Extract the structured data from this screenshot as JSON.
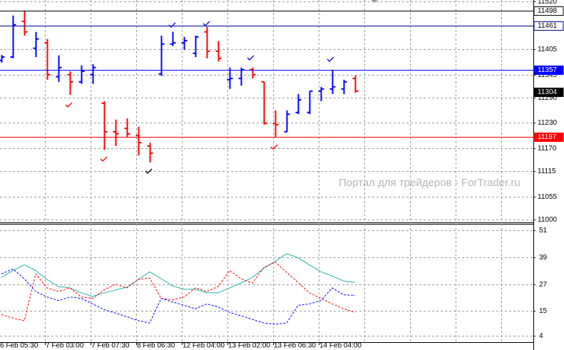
{
  "chart_data": [
    {
      "type": "ohlc",
      "watermark": "Портал для трейдеров - ForTrader.ru",
      "up_color": "#0000ff",
      "down_color": "#ff0000",
      "ylim": [
        10993,
        11523
      ],
      "yticks": [
        11520,
        11405,
        11345,
        11290,
        11230,
        11170,
        11115,
        11055,
        11000
      ],
      "grid": true,
      "levels": [
        {
          "value": 11498,
          "color": "#000000",
          "line": true,
          "filled": false
        },
        {
          "value": 11461,
          "color": "#00008b",
          "line": true,
          "filled": false
        },
        {
          "value": 11357,
          "color": "#0000ff",
          "line": true,
          "filled": true
        },
        {
          "value": 11304,
          "color": "#000000",
          "line": false,
          "filled": true
        },
        {
          "value": 11197,
          "color": "#ff0000",
          "line": true,
          "filled": true
        }
      ],
      "open": [
        11379,
        11387,
        11472,
        11408,
        11421,
        11340,
        11345,
        11328,
        11345,
        11277,
        11209,
        11217,
        11200,
        11175,
        11347,
        11418,
        11421,
        11396,
        11447,
        11401,
        11333,
        11336,
        11357,
        11328,
        11229,
        11209,
        11255,
        11255,
        11306,
        11311,
        11311,
        11336
      ],
      "high": [
        11392,
        11486,
        11498,
        11447,
        11430,
        11391,
        11353,
        11367,
        11370,
        11282,
        11238,
        11241,
        11221,
        11183,
        11438,
        11447,
        11435,
        11438,
        11459,
        11425,
        11362,
        11362,
        11362,
        11328,
        11260,
        11260,
        11299,
        11306,
        11316,
        11357,
        11333,
        11343
      ],
      "low": [
        11374,
        11384,
        11438,
        11387,
        11333,
        11328,
        11297,
        11323,
        11323,
        11166,
        11175,
        11197,
        11153,
        11136,
        11342,
        11413,
        11404,
        11387,
        11384,
        11376,
        11311,
        11319,
        11336,
        11226,
        11197,
        11209,
        11251,
        11251,
        11282,
        11299,
        11299,
        11302
      ],
      "close": [
        11387,
        11464,
        11447,
        11430,
        11345,
        11362,
        11328,
        11353,
        11362,
        11209,
        11204,
        11204,
        11183,
        11158,
        11418,
        11421,
        11426,
        11435,
        11401,
        11384,
        11336,
        11357,
        11345,
        11229,
        11226,
        11251,
        11285,
        11306,
        11311,
        11316,
        11328,
        11306
      ]
    },
    {
      "type": "line",
      "categories": [
        "6 Feb 05:30",
        null,
        null,
        null,
        "7 Feb 03:00",
        null,
        null,
        null,
        "7 Feb 07:30",
        null,
        null,
        null,
        "8 Feb 06:30",
        null,
        null,
        null,
        "12 Feb 04:00",
        null,
        null,
        null,
        "13 Feb 02:00",
        null,
        null,
        null,
        "13 Feb 06:30",
        null,
        null,
        null,
        "14 Feb 04:00",
        null,
        null,
        null
      ],
      "ylim": [
        1,
        54
      ],
      "yticks": [
        51,
        39,
        27,
        15,
        4
      ],
      "grid": true,
      "series": [
        {
          "color": "#20b2aa",
          "dashed": false,
          "values": [
            30.0,
            33.1,
            35.6,
            33.1,
            29.1,
            25.9,
            25.3,
            23.1,
            21.5,
            23.1,
            24.4,
            25.6,
            29.1,
            32.5,
            29.4,
            26.2,
            24.7,
            24.7,
            23.1,
            23.1,
            25.3,
            27.5,
            30.0,
            34.1,
            37.2,
            40.7,
            38.8,
            35.6,
            32.5,
            30.6,
            28.4,
            27.8
          ]
        },
        {
          "color": "#ff0000",
          "dashed": true,
          "values": [
            13.4,
            11.8,
            10.6,
            31.6,
            25.3,
            23.7,
            25.3,
            21.2,
            20.6,
            24.4,
            26.9,
            25.3,
            29.1,
            29.7,
            20.6,
            20.0,
            21.2,
            25.3,
            23.7,
            25.9,
            33.1,
            29.4,
            27.5,
            34.4,
            36.9,
            32.2,
            27.8,
            23.1,
            20.6,
            18.1,
            15.9,
            14.3
          ]
        },
        {
          "color": "#0000ff",
          "dashed": true,
          "values": [
            31.6,
            33.8,
            29.4,
            23.7,
            21.2,
            19.6,
            21.2,
            20.6,
            18.1,
            15.6,
            14.0,
            12.4,
            10.6,
            9.6,
            20.6,
            19.0,
            17.5,
            15.9,
            18.1,
            16.8,
            14.3,
            12.8,
            11.2,
            9.6,
            9.0,
            9.6,
            17.5,
            18.1,
            19.6,
            25.3,
            22.2,
            21.9
          ]
        }
      ]
    }
  ]
}
